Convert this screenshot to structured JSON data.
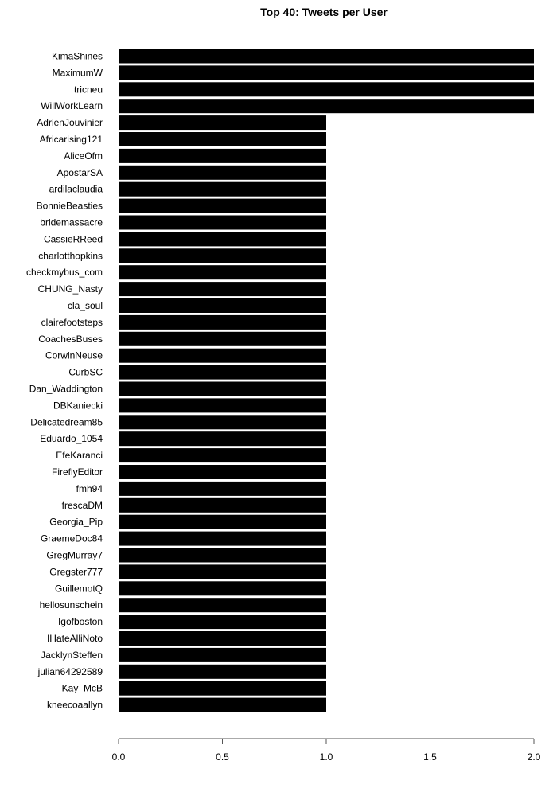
{
  "chart_data": {
    "type": "bar",
    "orientation": "horizontal",
    "title": "Top 40: Tweets per User",
    "xlabel": "",
    "ylabel": "",
    "xlim": [
      0,
      2
    ],
    "ticks": [
      "0.0",
      "0.5",
      "1.0",
      "1.5",
      "2.0"
    ],
    "tick_values": [
      0,
      0.5,
      1,
      1.5,
      2
    ],
    "grid": false,
    "bar_color": "#000000",
    "categories": [
      "KimaShines",
      "MaximumW",
      "tricneu",
      "WillWorkLearn",
      "AdrienJouvinier",
      "Africarising121",
      "AliceOfm",
      "ApostarSA",
      "ardilaclaudia",
      "BonnieBeasties",
      "bridemassacre",
      "CassieRReed",
      "charlotthopkins",
      "checkmybus_com",
      "CHUNG_Nasty",
      "cla_soul",
      "clairefootsteps",
      "CoachesBuses",
      "CorwinNeuse",
      "CurbSC",
      "Dan_Waddington",
      "DBKaniecki",
      "Delicatedream85",
      "Eduardo_1054",
      "EfeKaranci",
      "FireflyEditor",
      "fmh94",
      "frescaDM",
      "Georgia_Pip",
      "GraemeDoc84",
      "GregMurray7",
      "Gregster777",
      "GuillemotQ",
      "hellosunschein",
      "Igofboston",
      "IHateAlliNoto",
      "JacklynSteffen",
      "julian64292589",
      "Kay_McB",
      "kneecoaallyn"
    ],
    "values": [
      2,
      2,
      2,
      2,
      1,
      1,
      1,
      1,
      1,
      1,
      1,
      1,
      1,
      1,
      1,
      1,
      1,
      1,
      1,
      1,
      1,
      1,
      1,
      1,
      1,
      1,
      1,
      1,
      1,
      1,
      1,
      1,
      1,
      1,
      1,
      1,
      1,
      1,
      1,
      1
    ]
  }
}
